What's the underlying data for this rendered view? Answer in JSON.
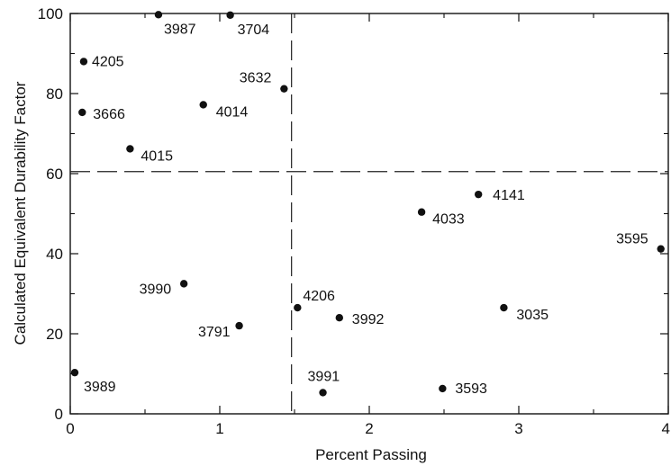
{
  "chart_data": {
    "type": "scatter",
    "title": "",
    "xlabel": "Percent Passing",
    "ylabel": "Calculated Equivalent Durability Factor",
    "xlim": [
      0,
      4
    ],
    "ylim": [
      0,
      100
    ],
    "x_ticks": [
      0,
      1,
      2,
      3,
      4
    ],
    "x_tick_labels": [
      "0",
      "1",
      "2",
      "3",
      "4"
    ],
    "y_ticks": [
      0,
      20,
      40,
      60,
      80,
      100
    ],
    "y_tick_labels": [
      "0",
      "20",
      "40",
      "60",
      "80",
      "100"
    ],
    "grid": false,
    "reference_lines": {
      "x": 1.48,
      "y": 60.5,
      "style": "dashed"
    },
    "points": [
      {
        "label": "3987",
        "x": 0.59,
        "y": 99.7
      },
      {
        "label": "3704",
        "x": 1.07,
        "y": 99.6
      },
      {
        "label": "4205",
        "x": 0.09,
        "y": 88.0
      },
      {
        "label": "3632",
        "x": 1.43,
        "y": 81.2
      },
      {
        "label": "4014",
        "x": 0.89,
        "y": 77.2
      },
      {
        "label": "3666",
        "x": 0.08,
        "y": 75.3
      },
      {
        "label": "4015",
        "x": 0.4,
        "y": 66.2
      },
      {
        "label": "4141",
        "x": 2.73,
        "y": 54.8
      },
      {
        "label": "4033",
        "x": 2.35,
        "y": 50.4
      },
      {
        "label": "3595",
        "x": 3.95,
        "y": 41.2
      },
      {
        "label": "3990",
        "x": 0.76,
        "y": 32.5
      },
      {
        "label": "4206",
        "x": 1.52,
        "y": 26.5
      },
      {
        "label": "3035",
        "x": 2.9,
        "y": 26.5
      },
      {
        "label": "3992",
        "x": 1.8,
        "y": 24.0
      },
      {
        "label": "3791",
        "x": 1.13,
        "y": 22.0
      },
      {
        "label": "3989",
        "x": 0.03,
        "y": 10.3
      },
      {
        "label": "3593",
        "x": 2.49,
        "y": 6.3
      },
      {
        "label": "3991",
        "x": 1.69,
        "y": 5.3
      }
    ]
  }
}
